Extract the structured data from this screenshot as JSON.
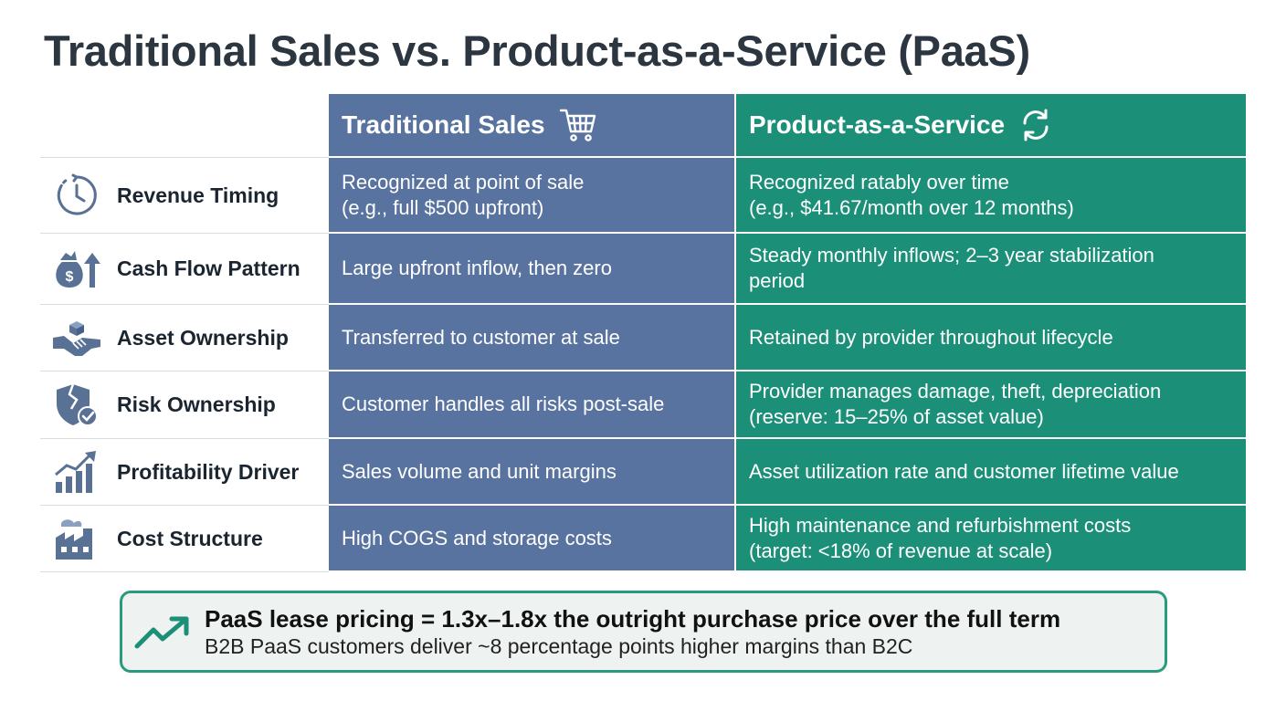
{
  "title": "Traditional Sales vs. Product-as-a-Service (PaaS)",
  "colors": {
    "traditional": "#58739f",
    "paas": "#1c8f79",
    "icon": "#5a7196",
    "callout_border": "#2a9a7f"
  },
  "header": {
    "traditional": "Traditional Sales",
    "traditional_icon": "shopping-cart-icon",
    "paas": "Product-as-a-Service",
    "paas_icon": "refresh-cycle-icon"
  },
  "rows": [
    {
      "label": "Revenue Timing",
      "icon": "clock-icon",
      "traditional": [
        "Recognized at point of sale",
        "(e.g., full $500 upfront)"
      ],
      "paas": [
        "Recognized ratably over time",
        "(e.g., $41.67/month over 12 months)"
      ]
    },
    {
      "label": "Cash Flow Pattern",
      "icon": "money-bag-arrow-icon",
      "traditional": [
        "Large upfront inflow, then zero"
      ],
      "paas": [
        "Steady monthly inflows; 2–3 year stabilization",
        "period"
      ]
    },
    {
      "label": "Asset Ownership",
      "icon": "handshake-box-icon",
      "traditional": [
        "Transferred to customer at sale"
      ],
      "paas": [
        "Retained by provider throughout lifecycle"
      ]
    },
    {
      "label": "Risk Ownership",
      "icon": "broken-shield-check-icon",
      "traditional": [
        "Customer handles all risks post-sale"
      ],
      "paas": [
        "Provider manages damage, theft, depreciation",
        "(reserve: 15–25% of asset value)"
      ]
    },
    {
      "label": "Profitability Driver",
      "icon": "growth-bars-icon",
      "traditional": [
        "Sales volume and unit margins"
      ],
      "paas": [
        "Asset utilization rate and customer lifetime value"
      ]
    },
    {
      "label": "Cost Structure",
      "icon": "factory-icon",
      "traditional": [
        "High COGS and storage costs"
      ],
      "paas": [
        "High maintenance and refurbishment costs",
        "(target: <18% of revenue at scale)"
      ]
    }
  ],
  "callout": {
    "icon": "trend-up-arrow-icon",
    "main": "PaaS lease pricing = 1.3x–1.8x the outright purchase price over the full term",
    "sub": "B2B PaaS customers deliver ~8 percentage points higher margins than B2C"
  }
}
